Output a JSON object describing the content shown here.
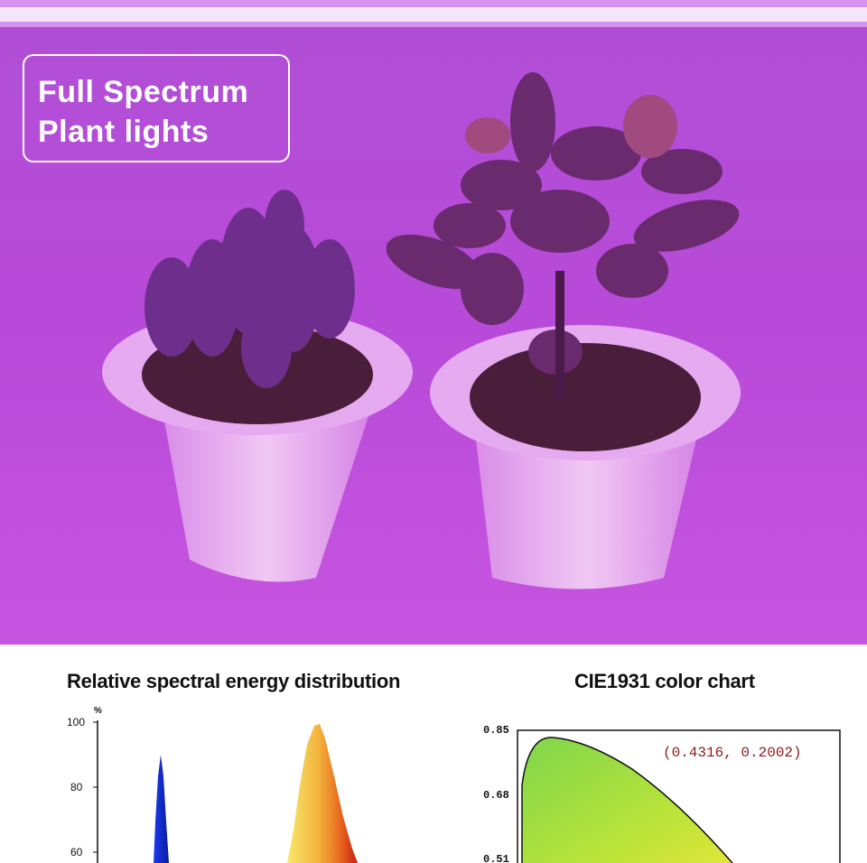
{
  "badge": {
    "line1": "Full Spectrum",
    "line2": "Plant lights"
  },
  "spectral_chart": {
    "title": "Relative spectral energy distribution",
    "unit": "%",
    "ticks": [
      "100",
      "80",
      "60"
    ]
  },
  "cie_chart": {
    "title": "CIE1931 color chart",
    "ticks": [
      "0.85",
      "0.68",
      "0.51"
    ],
    "coordinate": "(0.4316, 0.2002)"
  },
  "colors": {
    "photo_bg": "#b446d8",
    "badge_border": "#ffffff",
    "blue_peak": "#1a2fd8",
    "red_peak": "#e0401a"
  }
}
